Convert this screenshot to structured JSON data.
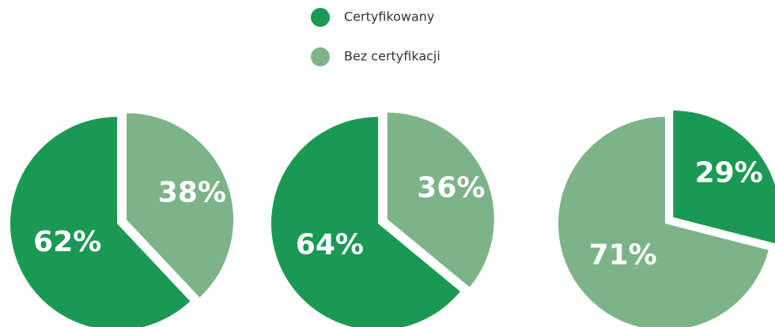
{
  "chart_data": [
    {
      "type": "pie",
      "categories": [
        "Certyfikowany",
        "Bez certyfikacji"
      ],
      "values": [
        62,
        38
      ],
      "value_labels": [
        "62%",
        "38%"
      ],
      "colors": [
        "#1b9954",
        "#7db389"
      ]
    },
    {
      "type": "pie",
      "categories": [
        "Certyfikowany",
        "Bez certyfikacji"
      ],
      "values": [
        64,
        36
      ],
      "value_labels": [
        "64%",
        "36%"
      ],
      "colors": [
        "#1b9954",
        "#7db389"
      ]
    },
    {
      "type": "pie",
      "categories": [
        "Certyfikowany",
        "Bez certyfikacji"
      ],
      "values": [
        29,
        71
      ],
      "value_labels": [
        "29%",
        "71%"
      ],
      "colors": [
        "#1b9954",
        "#7db389"
      ]
    }
  ]
}
